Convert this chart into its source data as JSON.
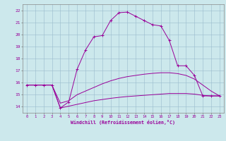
{
  "xlabel": "Windchill (Refroidissement éolien,°C)",
  "xlim": [
    -0.5,
    23.5
  ],
  "ylim": [
    13.5,
    22.5
  ],
  "xticks": [
    0,
    1,
    2,
    3,
    4,
    5,
    6,
    7,
    8,
    9,
    10,
    11,
    12,
    13,
    14,
    15,
    16,
    17,
    18,
    19,
    20,
    21,
    22,
    23
  ],
  "yticks": [
    14,
    15,
    16,
    17,
    18,
    19,
    20,
    21,
    22
  ],
  "bg_color": "#cce8ec",
  "line_color": "#990099",
  "grid_color": "#99bbcc",
  "line1_x": [
    0,
    1,
    2,
    3,
    4,
    5,
    6,
    7,
    8,
    9,
    10,
    11,
    12,
    13,
    14,
    15,
    16,
    17,
    18,
    19,
    20,
    21,
    22,
    23
  ],
  "line1_y": [
    15.8,
    15.8,
    15.8,
    15.8,
    13.9,
    14.4,
    17.1,
    18.7,
    19.8,
    19.9,
    21.15,
    21.8,
    21.85,
    21.5,
    21.15,
    20.8,
    20.7,
    19.5,
    17.4,
    17.4,
    16.6,
    14.9,
    14.9,
    14.9
  ],
  "line2_x": [
    0,
    1,
    2,
    3,
    4,
    5,
    6,
    7,
    8,
    9,
    10,
    11,
    12,
    13,
    14,
    15,
    16,
    17,
    18,
    19,
    20,
    21,
    22,
    23
  ],
  "line2_y": [
    15.8,
    15.8,
    15.8,
    15.8,
    14.3,
    14.5,
    15.0,
    15.3,
    15.6,
    15.9,
    16.15,
    16.35,
    16.5,
    16.6,
    16.7,
    16.77,
    16.82,
    16.82,
    16.75,
    16.6,
    16.3,
    15.8,
    15.3,
    14.9
  ],
  "line3_x": [
    0,
    1,
    2,
    3,
    4,
    5,
    6,
    7,
    8,
    9,
    10,
    11,
    12,
    13,
    14,
    15,
    16,
    17,
    18,
    19,
    20,
    21,
    22,
    23
  ],
  "line3_y": [
    15.8,
    15.8,
    15.8,
    15.8,
    13.9,
    14.05,
    14.2,
    14.35,
    14.5,
    14.6,
    14.7,
    14.78,
    14.85,
    14.9,
    14.95,
    15.0,
    15.05,
    15.1,
    15.1,
    15.1,
    15.05,
    14.95,
    14.9,
    14.9
  ]
}
